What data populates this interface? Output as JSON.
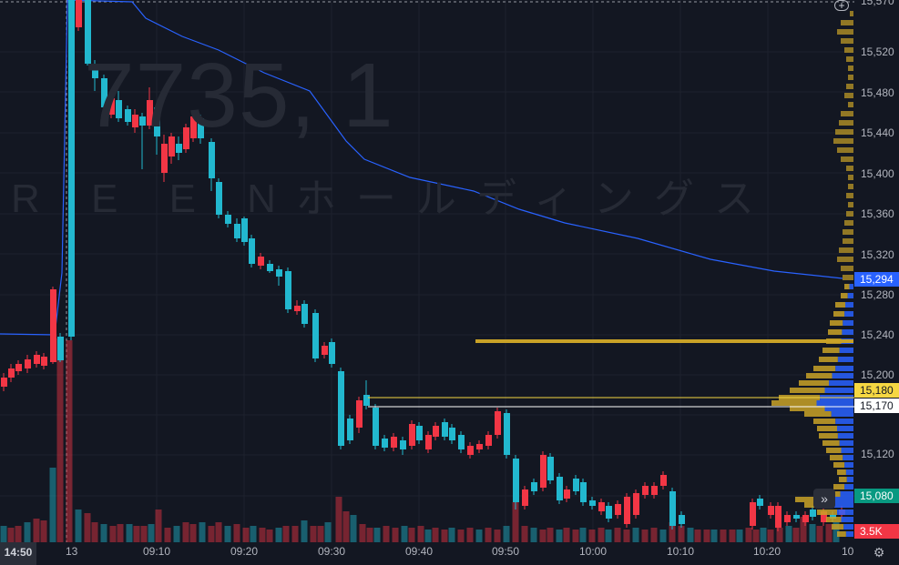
{
  "watermark": {
    "symbol": "7735, 1",
    "name": "R E E Nホールディングス"
  },
  "price_axis": {
    "ticks": [
      "15,520",
      "15,480",
      "15,440",
      "15,400",
      "15,360",
      "15,320",
      "15,280",
      "15,240",
      "15,200",
      "15,120"
    ],
    "top_partial": "15,570",
    "tags": {
      "vwap": {
        "label": "15,294",
        "color": "#2962ff"
      },
      "line_upper": {
        "label": "15,180",
        "color": "#f5d742"
      },
      "line_lower": {
        "label": "15,170",
        "color": "#ffffff"
      },
      "last": {
        "label": "15,080",
        "color": "#089981"
      },
      "volume": {
        "label": "3.5K",
        "color": "#f23645"
      }
    }
  },
  "time_axis": {
    "corner": "14:50",
    "ticks": [
      "13",
      "09:10",
      "09:20",
      "09:30",
      "09:40",
      "09:50",
      "10:00",
      "10:10",
      "10:20",
      "10"
    ]
  },
  "controls": {
    "scroll_right": "»",
    "settings": "⚙",
    "add": "+"
  },
  "colors": {
    "up": "#22b8cf",
    "down": "#f23645",
    "vwap": "#2962ff",
    "profile": "#c9a227"
  }
}
